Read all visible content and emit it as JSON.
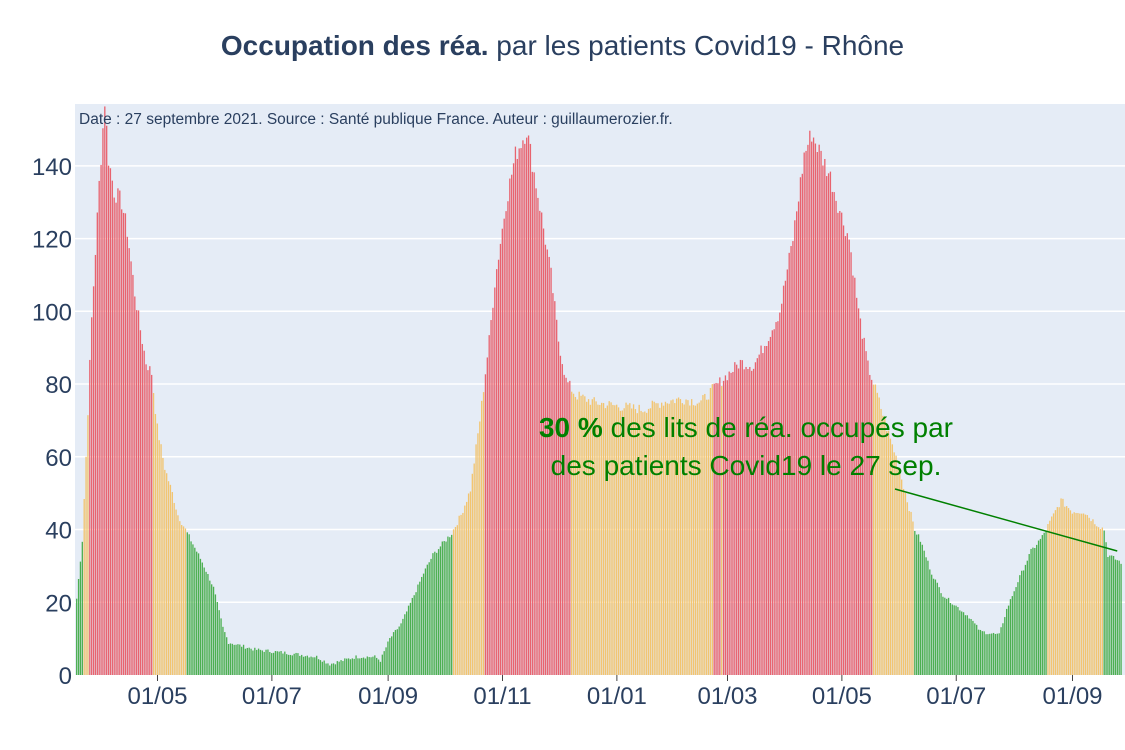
{
  "title": {
    "bold": "Occupation des réa.",
    "rest": " par les patients Covid19 - Rhône"
  },
  "note": "Date : 27 septembre 2021. Source : Santé publique France. Auteur : guillaumerozier.fr.",
  "annotation": {
    "percent": "30  %",
    "line1_rest": " des lits de réa. occupés par",
    "line2": "des patients Covid19 le 27 sep."
  },
  "colors": {
    "plot_bg": "#e5ecf6",
    "red": "#e8636e",
    "orange": "#f2c46f",
    "green": "#4caf50",
    "annotation": "#008000",
    "text": "#2a3f5f"
  },
  "chart_data": {
    "type": "bar",
    "title": "Occupation des réa. par les patients Covid19 - Rhône",
    "xlabel": "",
    "ylabel": "",
    "x_range": [
      "2020-03-18",
      "2021-09-29"
    ],
    "ylim": [
      0,
      157
    ],
    "y_ticks": [
      0,
      20,
      40,
      60,
      80,
      100,
      120,
      140
    ],
    "x_ticks": [
      {
        "date": "2020-05-01",
        "label": "01/05"
      },
      {
        "date": "2020-07-01",
        "label": "01/07"
      },
      {
        "date": "2020-09-01",
        "label": "01/09"
      },
      {
        "date": "2020-11-01",
        "label": "01/11"
      },
      {
        "date": "2021-01-01",
        "label": "01/01"
      },
      {
        "date": "2021-03-01",
        "label": "01/03"
      },
      {
        "date": "2021-05-01",
        "label": "01/05"
      },
      {
        "date": "2021-07-01",
        "label": "01/07"
      },
      {
        "date": "2021-09-01",
        "label": "01/09"
      }
    ],
    "grid": true,
    "color_rule": "green below 40, orange 40-80, red above 80",
    "daily_values_keypoints": [
      [
        "2020-03-19",
        21
      ],
      [
        "2020-03-22",
        37
      ],
      [
        "2020-03-24",
        60
      ],
      [
        "2020-03-27",
        98
      ],
      [
        "2020-03-31",
        135
      ],
      [
        "2020-04-03",
        158
      ],
      [
        "2020-04-05",
        142
      ],
      [
        "2020-04-08",
        133
      ],
      [
        "2020-04-12",
        130
      ],
      [
        "2020-04-15",
        122
      ],
      [
        "2020-04-19",
        105
      ],
      [
        "2020-04-22",
        95
      ],
      [
        "2020-04-25",
        86
      ],
      [
        "2020-04-28",
        83
      ],
      [
        "2020-05-01",
        68
      ],
      [
        "2020-05-05",
        57
      ],
      [
        "2020-05-09",
        50
      ],
      [
        "2020-05-12",
        44
      ],
      [
        "2020-05-16",
        40
      ],
      [
        "2020-05-19",
        37
      ],
      [
        "2020-05-25",
        31
      ],
      [
        "2020-05-31",
        24
      ],
      [
        "2020-06-05",
        13
      ],
      [
        "2020-06-08",
        9
      ],
      [
        "2020-06-15",
        8
      ],
      [
        "2020-06-22",
        7
      ],
      [
        "2020-07-10",
        6
      ],
      [
        "2020-07-25",
        5
      ],
      [
        "2020-08-01",
        3
      ],
      [
        "2020-08-15",
        5
      ],
      [
        "2020-08-25",
        5
      ],
      [
        "2020-08-28",
        4
      ],
      [
        "2020-09-02",
        10
      ],
      [
        "2020-09-08",
        14
      ],
      [
        "2020-09-15",
        22
      ],
      [
        "2020-09-20",
        28
      ],
      [
        "2020-09-25",
        33
      ],
      [
        "2020-09-30",
        36
      ],
      [
        "2020-10-05",
        39
      ],
      [
        "2020-10-10",
        44
      ],
      [
        "2020-10-15",
        51
      ],
      [
        "2020-10-20",
        70
      ],
      [
        "2020-10-25",
        92
      ],
      [
        "2020-10-28",
        108
      ],
      [
        "2020-11-03",
        130
      ],
      [
        "2020-11-08",
        143
      ],
      [
        "2020-11-14",
        150
      ],
      [
        "2020-11-18",
        138
      ],
      [
        "2020-11-22",
        126
      ],
      [
        "2020-11-27",
        110
      ],
      [
        "2020-12-01",
        92
      ],
      [
        "2020-12-05",
        81
      ],
      [
        "2020-12-10",
        77
      ],
      [
        "2020-12-20",
        75
      ],
      [
        "2021-01-01",
        74
      ],
      [
        "2021-01-15",
        73
      ],
      [
        "2021-01-25",
        75
      ],
      [
        "2021-02-05",
        76
      ],
      [
        "2021-02-15",
        75
      ],
      [
        "2021-02-22",
        79
      ],
      [
        "2021-02-28",
        82
      ],
      [
        "2021-03-08",
        86
      ],
      [
        "2021-03-15",
        85
      ],
      [
        "2021-03-22",
        92
      ],
      [
        "2021-03-29",
        100
      ],
      [
        "2021-04-05",
        120
      ],
      [
        "2021-04-11",
        143
      ],
      [
        "2021-04-15",
        149
      ],
      [
        "2021-04-20",
        143
      ],
      [
        "2021-04-25",
        137
      ],
      [
        "2021-05-01",
        126
      ],
      [
        "2021-05-05",
        120
      ],
      [
        "2021-05-10",
        100
      ],
      [
        "2021-05-15",
        85
      ],
      [
        "2021-05-20",
        77
      ],
      [
        "2021-05-25",
        68
      ],
      [
        "2021-05-30",
        60
      ],
      [
        "2021-06-04",
        50
      ],
      [
        "2021-06-09",
        40
      ],
      [
        "2021-06-12",
        37
      ],
      [
        "2021-06-18",
        28
      ],
      [
        "2021-06-24",
        22
      ],
      [
        "2021-07-01",
        19
      ],
      [
        "2021-07-08",
        16
      ],
      [
        "2021-07-14",
        12
      ],
      [
        "2021-07-24",
        11
      ],
      [
        "2021-07-28",
        18
      ],
      [
        "2021-08-04",
        27
      ],
      [
        "2021-08-10",
        34
      ],
      [
        "2021-08-16",
        38
      ],
      [
        "2021-08-20",
        42
      ],
      [
        "2021-08-26",
        48
      ],
      [
        "2021-09-01",
        45
      ],
      [
        "2021-09-07",
        45
      ],
      [
        "2021-09-13",
        42
      ],
      [
        "2021-09-18",
        40
      ],
      [
        "2021-09-20",
        33
      ],
      [
        "2021-09-27",
        31
      ]
    ]
  }
}
